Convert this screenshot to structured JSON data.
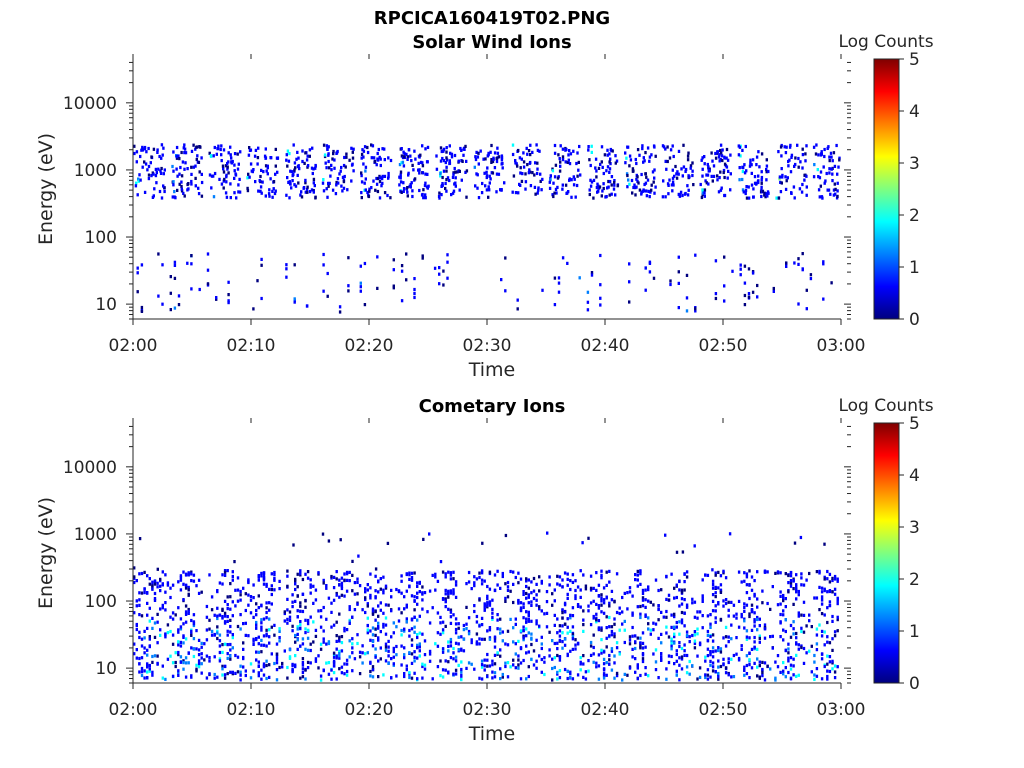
{
  "figure": {
    "filename_title": "RPCICA160419T02.PNG"
  },
  "colors": {
    "axis": "#262626",
    "colormap": [
      "#00007f",
      "#0000ff",
      "#007fff",
      "#00ffff",
      "#7fff7f",
      "#ffff00",
      "#ff7f00",
      "#ff0000",
      "#7f0000"
    ]
  },
  "chart_data": [
    {
      "type": "heatmap",
      "title": "Solar Wind Ions",
      "xlabel": "Time",
      "ylabel": "Energy (eV)",
      "xlim": [
        "02:00",
        "03:00"
      ],
      "x_ticks": [
        "02:00",
        "02:10",
        "02:20",
        "02:30",
        "02:40",
        "02:50",
        "03:00"
      ],
      "y_scale": "log",
      "ylim": [
        6,
        45000
      ],
      "y_ticks": [
        "10",
        "100",
        "1000",
        "10000"
      ],
      "colorbar": {
        "label": "Log Counts",
        "range": [
          0,
          5
        ],
        "ticks": [
          "0",
          "1",
          "2",
          "3",
          "4",
          "5"
        ]
      },
      "features": {
        "main_band": {
          "energy_range_eV": [
            400,
            2500
          ],
          "burst_start_minutes": [
            0,
            3.2,
            6.4,
            9.6,
            12.8,
            16,
            19.2,
            22.4,
            25.6,
            28.8,
            32,
            35.2,
            38.4,
            41.6,
            44.8,
            48,
            51.2,
            54.4,
            57.6
          ],
          "peak_log_counts": 2.2
        },
        "low_energy_sparse": {
          "energy_range_eV": [
            8,
            60
          ],
          "peak_log_counts": 1.0
        }
      }
    },
    {
      "type": "heatmap",
      "title": "Cometary Ions",
      "xlabel": "Time",
      "ylabel": "Energy (eV)",
      "xlim": [
        "02:00",
        "03:00"
      ],
      "x_ticks": [
        "02:00",
        "02:10",
        "02:20",
        "02:30",
        "02:40",
        "02:50",
        "03:00"
      ],
      "y_scale": "log",
      "ylim": [
        6,
        45000
      ],
      "y_ticks": [
        "10",
        "100",
        "1000",
        "10000"
      ],
      "colorbar": {
        "label": "Log Counts",
        "range": [
          0,
          5
        ],
        "ticks": [
          "0",
          "1",
          "2",
          "3",
          "4",
          "5"
        ]
      },
      "features": {
        "main_band": {
          "energy_range_eV": [
            7,
            300
          ],
          "peak_log_counts": 2.0
        },
        "sparse_high": {
          "energy_range_eV": [
            300,
            1100
          ],
          "peak_log_counts": 0.5
        }
      }
    }
  ]
}
